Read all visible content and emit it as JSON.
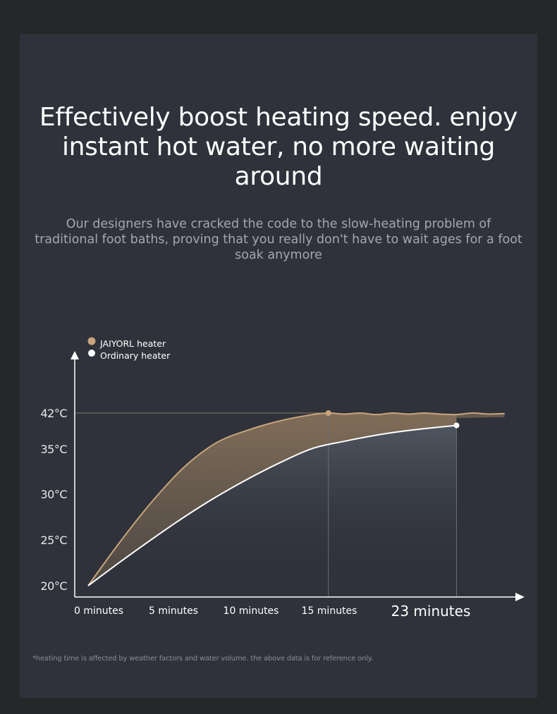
{
  "headline": {
    "line1": "Effectively boost heating speed. enjoy",
    "line2": "instant hot water, no more waiting",
    "line3": "around"
  },
  "subtitle": {
    "line1": "Our designers have cracked the code to the slow-heating problem of",
    "line2": "traditional foot baths, proving that you really don't have to wait ages for a foot",
    "line3": "soak anymore"
  },
  "chart_data": {
    "type": "line",
    "x_ticks": [
      "0 minutes",
      "5 minutes",
      "10 minutes",
      "15 minutes",
      "23 minutes"
    ],
    "x_tick_values": [
      0,
      5,
      10,
      15,
      23
    ],
    "y_ticks": [
      "20°C",
      "25°C",
      "30°C",
      "35°C",
      "42°C"
    ],
    "y_tick_values": [
      20,
      25,
      30,
      35,
      42
    ],
    "xlim": [
      0,
      26.5
    ],
    "ylim": [
      20,
      42
    ],
    "legend_position": "top-left",
    "series": [
      {
        "name": "JAIYORL heater",
        "color": "#c8a57c",
        "x": [
          0,
          2,
          4,
          6,
          8,
          10,
          12,
          14,
          15,
          16,
          17,
          18,
          19,
          20,
          21,
          22,
          23,
          24,
          25,
          26
        ],
        "y": [
          20,
          24.8,
          29.2,
          33,
          36.2,
          38.7,
          40.5,
          41.7,
          42,
          41.8,
          42,
          41.7,
          42,
          41.8,
          42,
          41.8,
          41.7,
          42,
          41.8,
          41.9
        ]
      },
      {
        "name": "Ordinary heater",
        "color": "#ffffff",
        "x": [
          0,
          2,
          4,
          6,
          8,
          10,
          12,
          14,
          16,
          18,
          20,
          23
        ],
        "y": [
          20,
          22.6,
          25.1,
          27.5,
          29.7,
          31.7,
          33.5,
          35.1,
          36.5,
          37.7,
          38.6,
          39.6
        ]
      }
    ],
    "markers": [
      {
        "series": 0,
        "x": 15,
        "y": 42
      },
      {
        "series": 1,
        "x": 23,
        "y": 39.6
      }
    ]
  },
  "footnote": "*heating time is affected by weather factors and water volume. the above data is for reference only."
}
